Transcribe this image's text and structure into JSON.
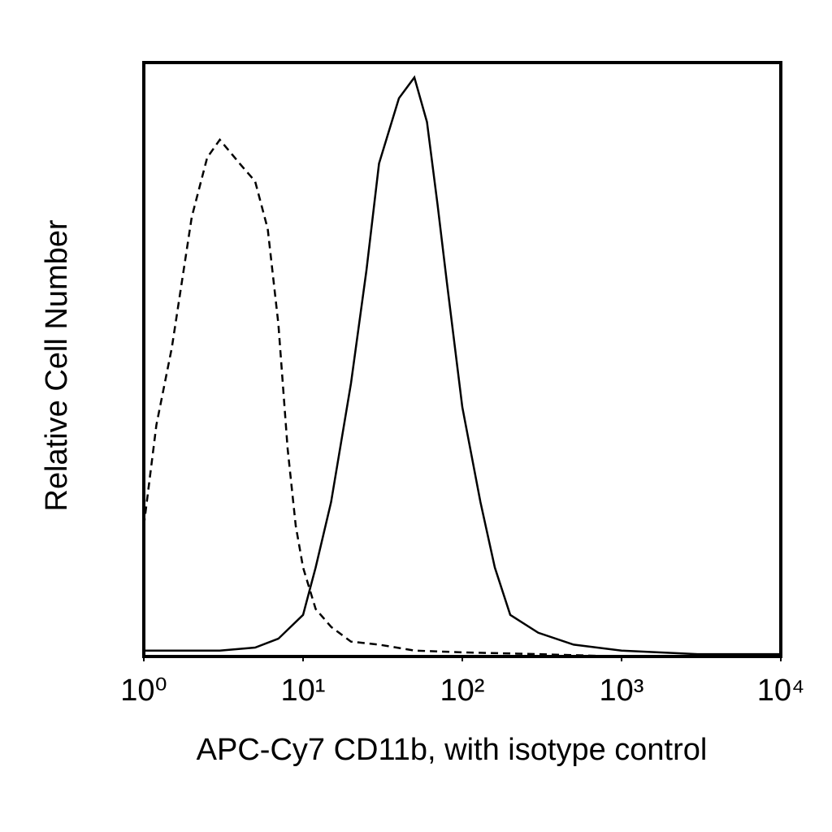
{
  "chart_data": {
    "type": "line",
    "xlabel": "APC-Cy7 CD11b, with isotype control",
    "ylabel": "Relative Cell Number",
    "xscale": "log",
    "xlim": [
      1,
      10000
    ],
    "xticks": [
      {
        "value": 1,
        "label": "10⁰"
      },
      {
        "value": 10,
        "label": "10¹"
      },
      {
        "value": 100,
        "label": "10²"
      },
      {
        "value": 1000,
        "label": "10³"
      },
      {
        "value": 10000,
        "label": "10⁴"
      }
    ],
    "ylim": [
      0,
      100
    ],
    "series": [
      {
        "color": "#000000",
        "dash": "dashed",
        "x": [
          1,
          1.2,
          1.5,
          2,
          2.5,
          3,
          4,
          5,
          6,
          7,
          8,
          9,
          10,
          12,
          15,
          20,
          30,
          50,
          100,
          300,
          1000
        ],
        "values": [
          22,
          39,
          52,
          74,
          84,
          87,
          83,
          80,
          72,
          56,
          35,
          22,
          15,
          8,
          5,
          2.5,
          2,
          1,
          0.7,
          0.4,
          0
        ]
      },
      {
        "color": "#000000",
        "dash": "solid",
        "x": [
          1,
          3,
          5,
          7,
          10,
          12,
          15,
          20,
          25,
          30,
          40,
          50,
          60,
          70,
          80,
          100,
          130,
          160,
          200,
          300,
          500,
          1000,
          3000,
          10000
        ],
        "values": [
          1,
          1,
          1.5,
          3,
          7,
          15,
          26,
          46,
          65,
          83,
          94,
          97.5,
          90,
          76,
          63,
          42,
          26,
          15,
          7,
          4,
          2,
          1,
          0.4,
          0.4
        ]
      }
    ]
  }
}
